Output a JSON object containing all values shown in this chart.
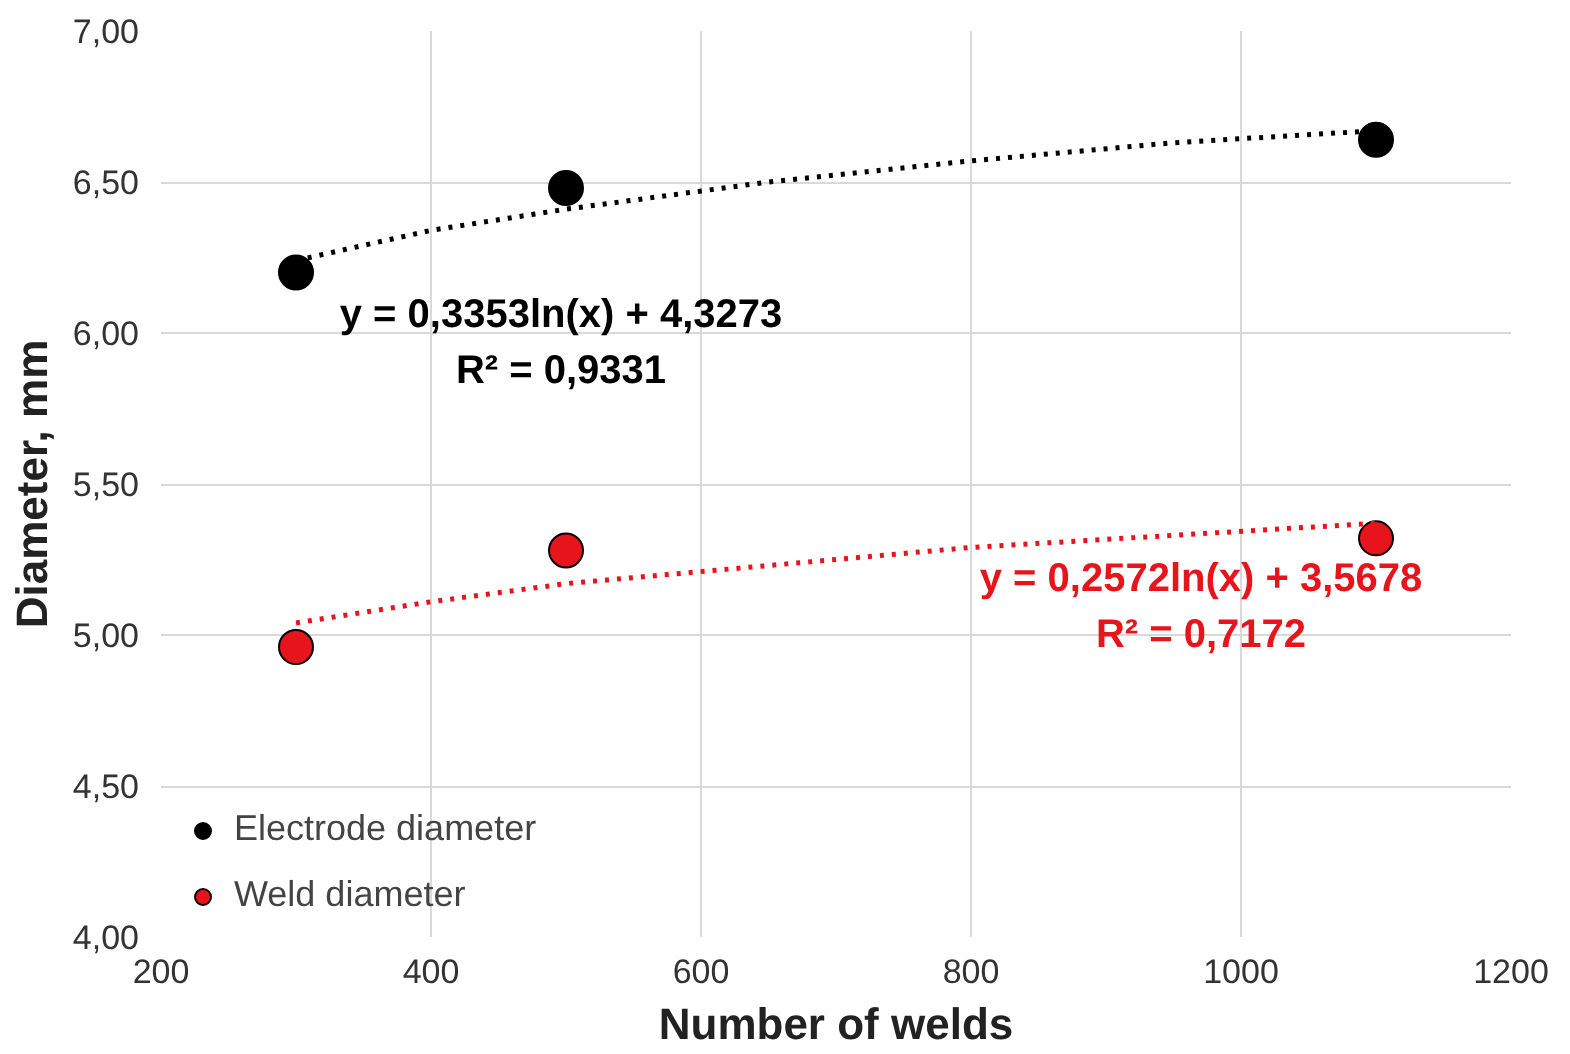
{
  "chart_data": {
    "type": "scatter",
    "xlabel": "Number of welds",
    "ylabel": "Diameter, mm",
    "xlim": [
      200,
      1200
    ],
    "xticks": [
      200,
      400,
      600,
      800,
      1000,
      1200
    ],
    "ylim": [
      4,
      7
    ],
    "yticks": [
      {
        "value": 4,
        "label": "4,00"
      },
      {
        "value": 4.5,
        "label": "4,50"
      },
      {
        "value": 5,
        "label": "5,00"
      },
      {
        "value": 5.5,
        "label": "5,50"
      },
      {
        "value": 6,
        "label": "6,00"
      },
      {
        "value": 6.5,
        "label": "6,50"
      },
      {
        "value": 7,
        "label": "7,00"
      }
    ],
    "grid": true,
    "legend": "bottom left",
    "marker": "circle",
    "series": [
      {
        "name": "Electrode diameter",
        "color": "#000000",
        "x": [
          300,
          500,
          1100
        ],
        "values": [
          6.2,
          6.48,
          6.64
        ]
      },
      {
        "name": "Weld diameter",
        "color": "#e8141b",
        "x": [
          300,
          500,
          1100
        ],
        "values": [
          4.96,
          5.28,
          5.32
        ]
      },
      {
        "type": "line",
        "marker": "none",
        "color": "#000000",
        "line_style": "dotted",
        "x": [
          300,
          400,
          500,
          650,
          800,
          950,
          1100
        ],
        "values": [
          6.24,
          6.34,
          6.41,
          6.5,
          6.57,
          6.63,
          6.67
        ]
      },
      {
        "type": "line",
        "marker": "none",
        "color": "#e8141b",
        "line_style": "dotted",
        "x": [
          300,
          400,
          500,
          650,
          800,
          950,
          1100
        ],
        "values": [
          5.04,
          5.11,
          5.17,
          5.23,
          5.29,
          5.33,
          5.37
        ]
      }
    ],
    "annotations": [
      "y = 0,3353ln(x) + 4,3273",
      "R² = 0,9331",
      "y = 0,2572ln(x) + 3,5678",
      "R² = 0,7172"
    ]
  }
}
